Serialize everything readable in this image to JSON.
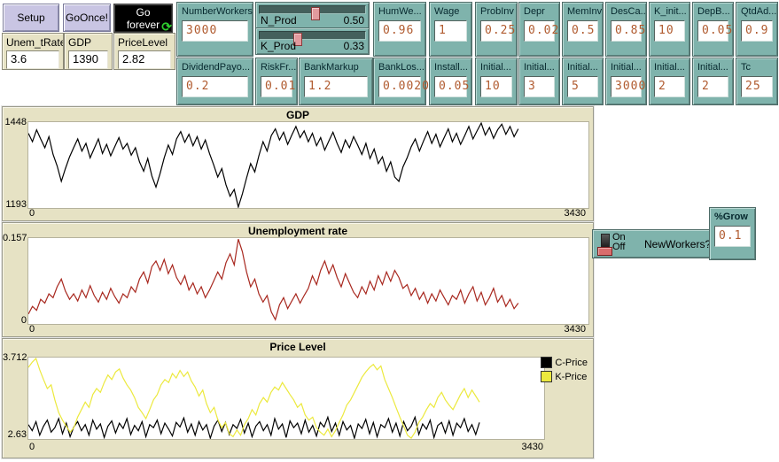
{
  "toolbar": {
    "setup_label": "Setup",
    "go_once_label": "GoOnce!",
    "go_forever_label": "Go forever",
    "go_forever_icon": "⟳"
  },
  "monitors": [
    {
      "label": "Unem_tRate",
      "value": "3.6"
    },
    {
      "label": "GDP",
      "value": "1390"
    },
    {
      "label": "PriceLevel",
      "value": "2.82"
    }
  ],
  "sliders": [
    {
      "label": "N_Prod",
      "value": "0.50",
      "fraction": 0.52
    },
    {
      "label": "K_Prod",
      "value": "0.33",
      "fraction": 0.35
    }
  ],
  "inputs_top": [
    {
      "label": "NumberWorkers",
      "value": "3000"
    },
    {
      "label": "HumWe...",
      "value": "0.96"
    },
    {
      "label": "Wage",
      "value": "1"
    },
    {
      "label": "ProbInv",
      "value": "0.25"
    },
    {
      "label": "Depr",
      "value": "0.02"
    },
    {
      "label": "MemInv",
      "value": "0.5"
    },
    {
      "label": "DesCa...",
      "value": "0.85"
    },
    {
      "label": "K_init...",
      "value": "10"
    },
    {
      "label": "DepB...",
      "value": "0.05"
    },
    {
      "label": "QtdAd...",
      "value": "0.9"
    }
  ],
  "inputs_bottom": [
    {
      "label": "DividendPayo...",
      "value": "0.2"
    },
    {
      "label": "RiskFr...",
      "value": "0.01"
    },
    {
      "label": "BankMarkup",
      "value": "1.2"
    },
    {
      "label": "BankLos...",
      "value": "0.0020"
    },
    {
      "label": "Install...",
      "value": "0.05"
    },
    {
      "label": "Initial...",
      "value": "10"
    },
    {
      "label": "Initial...",
      "value": "3"
    },
    {
      "label": "Initial...",
      "value": "5"
    },
    {
      "label": "Initial...",
      "value": "3000"
    },
    {
      "label": "Initial...",
      "value": "2"
    },
    {
      "label": "Initial...",
      "value": "2"
    },
    {
      "label": "Tc",
      "value": "25"
    }
  ],
  "switch": {
    "on_label": "On",
    "off_label": "Off",
    "label": "NewWorkers?",
    "state": "off"
  },
  "grow_input": {
    "label": "%Grow",
    "value": "0.1"
  },
  "colors": {
    "widget_teal": "#7fb3ac",
    "monitor_beige": "#e6e2c4",
    "button_lavender": "#c9c5e3",
    "value_text": "#b05a2e",
    "go_forever_bg": "#000000",
    "icon_green": "#2ecc2e"
  },
  "chart_data": [
    {
      "id": "gdp",
      "type": "line",
      "title": "GDP",
      "xlim": [
        0,
        3430
      ],
      "x_data_end": 3000,
      "ylim": [
        1193,
        1448
      ],
      "x_tick_labels": [
        "0",
        "3430"
      ],
      "y_tick_labels": [
        "1448",
        "1193"
      ],
      "grid": false,
      "legend_position": "none",
      "series": [
        {
          "name": "GDP",
          "color": "#000000",
          "values": [
            1415,
            1390,
            1425,
            1398,
            1372,
            1405,
            1352,
            1318,
            1272,
            1310,
            1345,
            1372,
            1398,
            1362,
            1385,
            1342,
            1370,
            1398,
            1355,
            1382,
            1348,
            1375,
            1402,
            1368,
            1385,
            1350,
            1372,
            1330,
            1302,
            1340,
            1288,
            1255,
            1295,
            1342,
            1380,
            1352,
            1398,
            1420,
            1388,
            1412,
            1378,
            1405,
            1368,
            1395,
            1355,
            1322,
            1285,
            1310,
            1262,
            1228,
            1248,
            1196,
            1235,
            1282,
            1325,
            1300,
            1348,
            1390,
            1362,
            1408,
            1428,
            1395,
            1418,
            1382,
            1410,
            1435,
            1402,
            1422,
            1390,
            1415,
            1378,
            1402,
            1365,
            1392,
            1418,
            1385,
            1358,
            1395,
            1372,
            1405,
            1380,
            1352,
            1385,
            1340,
            1368,
            1325,
            1345,
            1302,
            1330,
            1285,
            1272,
            1315,
            1342,
            1375,
            1398,
            1362,
            1392,
            1420,
            1385,
            1412,
            1375,
            1402,
            1428,
            1390,
            1415,
            1382,
            1408,
            1435,
            1398,
            1422,
            1445,
            1410,
            1432,
            1400,
            1425,
            1442,
            1412,
            1435,
            1405,
            1428
          ]
        }
      ]
    },
    {
      "id": "unemployment",
      "type": "line",
      "title": "Unemployment rate",
      "xlim": [
        0,
        3430
      ],
      "x_data_end": 3000,
      "ylim": [
        0,
        0.157
      ],
      "x_tick_labels": [
        "0",
        "3430"
      ],
      "y_tick_labels": [
        "0.157",
        "0"
      ],
      "grid": false,
      "legend_position": "none",
      "series": [
        {
          "name": "Unemployment rate",
          "color": "#a8281f",
          "values": [
            0.018,
            0.032,
            0.025,
            0.045,
            0.038,
            0.055,
            0.048,
            0.068,
            0.082,
            0.06,
            0.045,
            0.055,
            0.042,
            0.062,
            0.048,
            0.07,
            0.052,
            0.04,
            0.058,
            0.045,
            0.065,
            0.05,
            0.038,
            0.055,
            0.048,
            0.068,
            0.058,
            0.082,
            0.095,
            0.075,
            0.105,
            0.115,
            0.098,
            0.118,
            0.092,
            0.108,
            0.085,
            0.072,
            0.088,
            0.062,
            0.075,
            0.055,
            0.068,
            0.048,
            0.062,
            0.078,
            0.095,
            0.082,
            0.112,
            0.128,
            0.108,
            0.155,
            0.132,
            0.095,
            0.068,
            0.082,
            0.055,
            0.04,
            0.052,
            0.022,
            0.008,
            0.035,
            0.048,
            0.028,
            0.042,
            0.055,
            0.038,
            0.052,
            0.065,
            0.088,
            0.072,
            0.098,
            0.115,
            0.092,
            0.108,
            0.085,
            0.068,
            0.092,
            0.075,
            0.058,
            0.048,
            0.068,
            0.055,
            0.078,
            0.062,
            0.088,
            0.072,
            0.095,
            0.078,
            0.098,
            0.085,
            0.065,
            0.072,
            0.052,
            0.065,
            0.045,
            0.058,
            0.038,
            0.055,
            0.042,
            0.062,
            0.048,
            0.035,
            0.052,
            0.045,
            0.062,
            0.038,
            0.055,
            0.068,
            0.042,
            0.058,
            0.035,
            0.048,
            0.065,
            0.04,
            0.052,
            0.032,
            0.045,
            0.028,
            0.038
          ]
        }
      ]
    },
    {
      "id": "price-level",
      "type": "line",
      "title": "Price Level",
      "xlim": [
        0,
        3430
      ],
      "x_data_end": 3000,
      "ylim": [
        2.63,
        3.712
      ],
      "x_tick_labels": [
        "0",
        "3430"
      ],
      "y_tick_labels": [
        "3.712",
        "2.63"
      ],
      "grid": false,
      "legend_position": "right",
      "legend": [
        {
          "label": "C-Price",
          "color": "#000000"
        },
        {
          "label": "K-Price",
          "color": "#ece93e"
        }
      ],
      "series": [
        {
          "name": "C-Price",
          "color": "#000000",
          "values": [
            2.82,
            2.74,
            2.86,
            2.68,
            2.8,
            2.88,
            2.72,
            2.78,
            2.9,
            2.7,
            2.84,
            2.66,
            2.79,
            2.86,
            2.74,
            2.82,
            2.68,
            2.88,
            2.76,
            2.83,
            2.65,
            2.8,
            2.87,
            2.71,
            2.84,
            2.77,
            2.9,
            2.69,
            2.81,
            2.74,
            2.86,
            2.66,
            2.82,
            2.78,
            2.88,
            2.7,
            2.84,
            2.76,
            2.67,
            2.85,
            2.79,
            2.91,
            2.72,
            2.83,
            2.68,
            2.86,
            2.75,
            2.82,
            2.64,
            2.8,
            2.88,
            2.73,
            2.85,
            2.69,
            2.82,
            2.77,
            2.89,
            2.71,
            2.84,
            2.66,
            2.8,
            2.86,
            2.74,
            2.82,
            2.68,
            2.9,
            2.76,
            2.83,
            2.65,
            2.87,
            2.78,
            2.84,
            2.7,
            2.88,
            2.72,
            2.81,
            2.67,
            2.85,
            2.79,
            2.92,
            2.73,
            2.84,
            2.68,
            2.86,
            2.75,
            2.81,
            2.64,
            2.83,
            2.77,
            2.89,
            2.7,
            2.85,
            2.66,
            2.82,
            2.78,
            2.9,
            2.72,
            2.84,
            2.67,
            2.86,
            2.74,
            2.8,
            2.92,
            2.69,
            2.83,
            2.76,
            2.88,
            2.65,
            2.81,
            2.85,
            2.71,
            2.87,
            2.68,
            2.84,
            2.78,
            2.9,
            2.73,
            2.82,
            2.69,
            2.85
          ]
        },
        {
          "name": "K-Price",
          "color": "#ece93e",
          "values": [
            3.58,
            3.65,
            3.7,
            3.55,
            3.42,
            3.3,
            3.35,
            3.15,
            2.98,
            2.88,
            2.8,
            2.72,
            2.78,
            2.92,
            3.02,
            3.12,
            3.05,
            3.22,
            3.3,
            3.25,
            3.38,
            3.48,
            3.42,
            3.52,
            3.56,
            3.44,
            3.35,
            3.28,
            3.18,
            3.05,
            2.98,
            2.9,
            3.02,
            3.15,
            3.22,
            3.35,
            3.42,
            3.38,
            3.5,
            3.44,
            3.54,
            3.46,
            3.52,
            3.4,
            3.32,
            3.2,
            3.28,
            3.1,
            2.98,
            3.05,
            2.88,
            2.78,
            2.85,
            2.7,
            2.66,
            2.75,
            2.68,
            2.82,
            2.9,
            3.02,
            2.95,
            3.1,
            3.18,
            3.12,
            3.25,
            3.32,
            3.28,
            3.38,
            3.3,
            3.22,
            3.15,
            3.05,
            3.1,
            2.95,
            2.88,
            2.92,
            2.78,
            2.72,
            2.68,
            2.76,
            2.66,
            2.74,
            2.85,
            2.95,
            3.08,
            3.15,
            3.25,
            3.35,
            3.45,
            3.52,
            3.58,
            3.62,
            3.55,
            3.6,
            3.42,
            3.3,
            3.18,
            3.05,
            2.92,
            2.8,
            2.68,
            2.64,
            2.72,
            2.85,
            2.92,
            3.02,
            3.1,
            3.05,
            3.18,
            3.25,
            3.15,
            3.08,
            3.02,
            3.12,
            3.22,
            3.3,
            3.18,
            3.28,
            3.2,
            3.12
          ]
        }
      ]
    }
  ]
}
